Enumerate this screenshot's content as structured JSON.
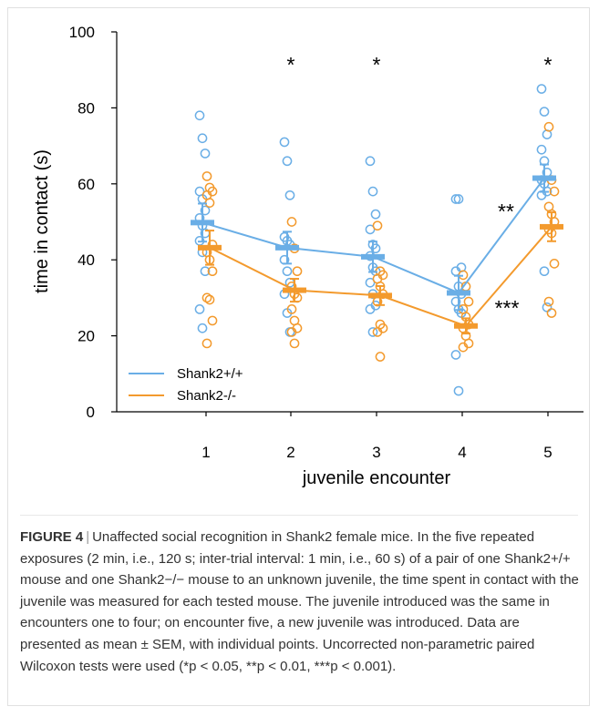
{
  "chart_data": {
    "type": "scatter",
    "xlabel": "juvenile encounter",
    "ylabel": "time in contact (s)",
    "categories": [
      "1",
      "2",
      "3",
      "4",
      "5"
    ],
    "ylim": [
      0,
      100
    ],
    "yticks": [
      "0",
      "20",
      "40",
      "60",
      "80",
      "100"
    ],
    "legend_position": "bottom-left",
    "significance": [
      "",
      "*",
      "*",
      "",
      "*"
    ],
    "pairwise_annotations": [
      "**",
      "***"
    ],
    "series": [
      {
        "name": "Shank2+/+",
        "color": "#6aaee6",
        "mean": [
          49.8,
          43.2,
          40.8,
          31.3,
          61.5
        ],
        "sem": [
          5.0,
          4.2,
          4.0,
          4.5,
          3.6
        ],
        "points": [
          [
            78,
            72,
            68,
            58,
            56,
            53,
            51,
            49,
            47,
            45,
            42,
            37,
            27,
            22
          ],
          [
            71,
            66,
            57,
            46,
            45,
            44,
            40,
            37,
            34,
            31,
            26,
            21
          ],
          [
            66,
            58,
            52,
            48,
            44,
            43,
            41,
            38,
            37,
            34,
            31,
            28,
            27,
            21
          ],
          [
            56,
            56,
            38,
            37,
            33,
            31,
            29,
            27,
            26,
            15,
            5.5
          ],
          [
            85,
            79,
            73,
            69,
            66,
            63,
            61,
            60,
            58,
            57,
            37,
            27.5
          ]
        ]
      },
      {
        "name": "Shank2-/-",
        "color": "#f39a2d",
        "mean": [
          43.2,
          32.0,
          30.6,
          22.6,
          48.7
        ],
        "sem": [
          4.5,
          3.0,
          2.5,
          2.0,
          3.8
        ],
        "points": [
          [
            62,
            59,
            58,
            57,
            55,
            44,
            42,
            40,
            37,
            30,
            29.5,
            24,
            18
          ],
          [
            50,
            43,
            37,
            33,
            31,
            30,
            27,
            24,
            22,
            21,
            18
          ],
          [
            49,
            37,
            36,
            35,
            33,
            31,
            29,
            23,
            22,
            21,
            14.5
          ],
          [
            36,
            33,
            29,
            27,
            25,
            23,
            22,
            20,
            18,
            17
          ],
          [
            75,
            61,
            58,
            54,
            52,
            50,
            48,
            47,
            39,
            29,
            26
          ]
        ]
      }
    ]
  },
  "caption": {
    "label": "FIGURE 4",
    "separator": "|",
    "text": "Unaffected social recognition in Shank2 female mice. In the five repeated exposures (2 min, i.e., 120 s; inter-trial interval: 1 min, i.e., 60 s) of a pair of one Shank2+/+ mouse and one Shank2−/− mouse to an unknown juvenile, the time spent in contact with the juvenile was measured for each tested mouse. The juvenile introduced was the same in encounters one to four; on encounter five, a new juvenile was introduced. Data are presented as mean ± SEM, with individual points. Uncorrected non-parametric paired Wilcoxon tests were used (*p < 0.05, **p < 0.01, ***p < 0.001)."
  }
}
